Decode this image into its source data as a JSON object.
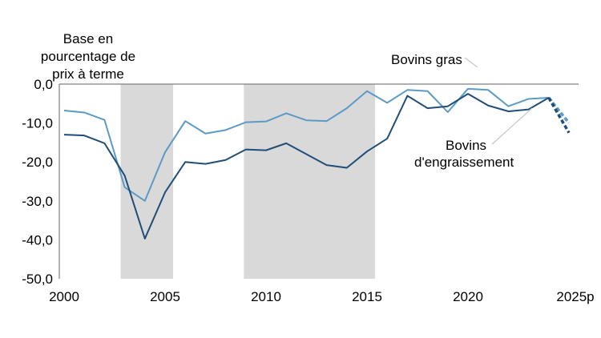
{
  "chart_data": {
    "type": "line",
    "ylabel": "Base en pourcentage de prix à terme",
    "ylim": [
      -50,
      0
    ],
    "yticks": [
      "0,0",
      "-10,0",
      "-20,0",
      "-30,0",
      "-40,0",
      "-50,0"
    ],
    "ytick_values": [
      0,
      -10,
      -20,
      -30,
      -40,
      -50
    ],
    "xlim": [
      2000,
      2025
    ],
    "xticks": [
      "2000",
      "2005",
      "2010",
      "2015",
      "2020",
      "2025p"
    ],
    "xtick_values": [
      2000,
      2005,
      2010,
      2015,
      2020,
      2025
    ],
    "shaded_periods": [
      [
        2002.8,
        2005.4
      ],
      [
        2008.9,
        2015.4
      ]
    ],
    "x": [
      2000,
      2001,
      2002,
      2003,
      2004,
      2005,
      2006,
      2007,
      2008,
      2009,
      2010,
      2011,
      2012,
      2013,
      2014,
      2015,
      2016,
      2017,
      2018,
      2019,
      2020,
      2021,
      2022,
      2023,
      2024
    ],
    "series": [
      {
        "name": "Bovins gras",
        "color": "#5b9bc5",
        "values": [
          -6.8,
          -7.3,
          -9.2,
          -26.5,
          -30.0,
          -17.5,
          -9.5,
          -12.7,
          -11.8,
          -9.8,
          -9.6,
          -7.5,
          -9.3,
          -9.5,
          -6.2,
          -1.8,
          -4.8,
          -1.5,
          -1.8,
          -7.2,
          -1.2,
          -1.5,
          -5.7,
          -3.8,
          -3.5
        ],
        "forecast": [
          [
            2024,
            -3.5
          ],
          [
            2025,
            -10.0
          ]
        ]
      },
      {
        "name": "Bovins d'engraissement",
        "color": "#1f4e79",
        "values": [
          -13.0,
          -13.2,
          -15.2,
          -23.5,
          -39.7,
          -27.8,
          -20.0,
          -20.5,
          -19.5,
          -16.8,
          -17.0,
          -15.2,
          -18.0,
          -20.8,
          -21.5,
          -17.3,
          -14.0,
          -3.0,
          -6.2,
          -5.7,
          -2.5,
          -5.5,
          -7.0,
          -6.5,
          -3.5
        ],
        "forecast": [
          [
            2024,
            -3.5
          ],
          [
            2025,
            -12.5
          ]
        ]
      }
    ]
  }
}
